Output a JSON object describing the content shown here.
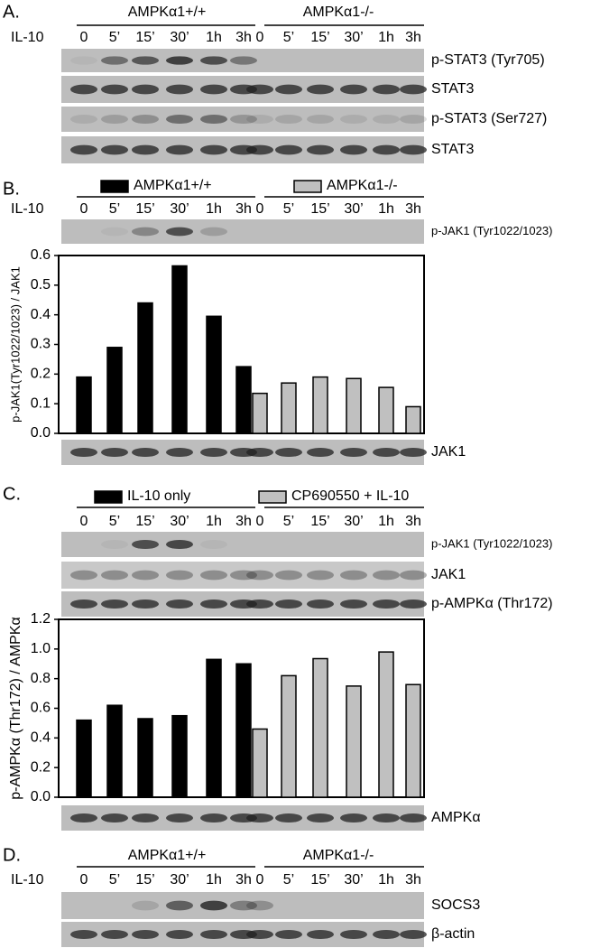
{
  "panels": [
    {
      "letter": "A.",
      "groups": [
        "AMPKα1+/+",
        "AMPKα1-/-"
      ],
      "row_label": "IL-10",
      "timepoints": [
        "0",
        "5’",
        "15’",
        "30’",
        "1h",
        "3h",
        "0",
        "5’",
        "15’",
        "30’",
        "1h",
        "3h"
      ],
      "blots": [
        "p-STAT3 (Tyr705)",
        "STAT3",
        "p-STAT3 (Ser727)",
        "STAT3"
      ]
    },
    {
      "letter": "B.",
      "row_label": "IL-10",
      "blots": [
        "p-JAK1 (Tyr1022/1023)",
        "JAK1"
      ]
    },
    {
      "letter": "C.",
      "blots": [
        "p-JAK1 (Tyr1022/1023)",
        "JAK1",
        "p-AMPKα (Thr172)",
        "AMPKα"
      ]
    },
    {
      "letter": "D.",
      "groups": [
        "AMPKα1+/+",
        "AMPKα1-/-"
      ],
      "row_label": "IL-10",
      "timepoints": [
        "0",
        "5’",
        "15’",
        "30’",
        "1h",
        "3h",
        "0",
        "5’",
        "15’",
        "30’",
        "1h",
        "3h"
      ],
      "blots": [
        "SOCS3",
        "β-actin"
      ]
    }
  ],
  "chart_data": [
    {
      "type": "bar",
      "y_label": "p-JAK1(Tyr1022/1023) / JAK1",
      "categories": [
        "0",
        "5’",
        "15’",
        "30’",
        "1h",
        "3h",
        "0",
        "5’",
        "15’",
        "30’",
        "1h",
        "3h"
      ],
      "series": [
        {
          "name": "AMPKα1+/+",
          "color": "#000000",
          "values": [
            0.19,
            0.29,
            0.44,
            0.565,
            0.395,
            0.225,
            null,
            null,
            null,
            null,
            null,
            null
          ]
        },
        {
          "name": "AMPKα1-/-",
          "color": "#c0c0c0",
          "values": [
            null,
            null,
            null,
            null,
            null,
            null,
            0.135,
            0.17,
            0.19,
            0.185,
            0.155,
            0.09
          ]
        }
      ],
      "ylim": [
        0,
        0.6
      ],
      "yticks": [
        {
          "value": 0,
          "label": "0.0"
        },
        0.1,
        0.2,
        0.3,
        0.4,
        0.5,
        0.6
      ]
    },
    {
      "type": "bar",
      "y_label": "p-AMPKα (Thr172) / AMPKα",
      "categories": [
        "0",
        "5’",
        "15’",
        "30’",
        "1h",
        "3h",
        "0",
        "5’",
        "15’",
        "30’",
        "1h",
        "3h"
      ],
      "series": [
        {
          "name": "IL-10 only",
          "color": "#000000",
          "values": [
            0.52,
            0.62,
            0.53,
            0.55,
            0.93,
            0.9,
            null,
            null,
            null,
            null,
            null,
            null
          ]
        },
        {
          "name": "CP690550 + IL-10",
          "color": "#c0c0c0",
          "values": [
            null,
            null,
            null,
            null,
            null,
            null,
            0.46,
            0.82,
            0.935,
            0.75,
            0.98,
            0.76
          ]
        }
      ],
      "ylim": [
        0,
        1.2
      ],
      "yticks": [
        {
          "value": 0,
          "label": "0.0"
        },
        0.2,
        0.4,
        0.6,
        0.8,
        {
          "value": 1,
          "label": "1.0"
        },
        1.2
      ]
    }
  ]
}
